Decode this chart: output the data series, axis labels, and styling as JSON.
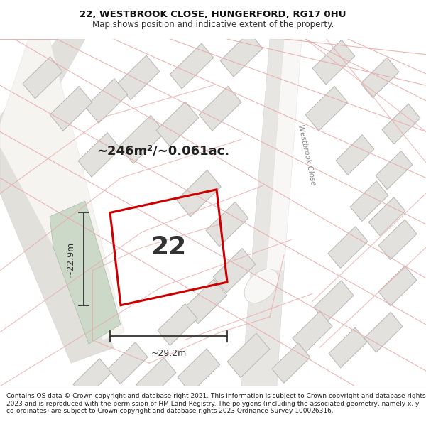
{
  "title_line1": "22, WESTBROOK CLOSE, HUNGERFORD, RG17 0HU",
  "title_line2": "Map shows position and indicative extent of the property.",
  "footer_text": "Contains OS data © Crown copyright and database right 2021. This information is subject to Crown copyright and database rights 2023 and is reproduced with the permission of HM Land Registry. The polygons (including the associated geometry, namely x, y co-ordinates) are subject to Crown copyright and database rights 2023 Ordnance Survey 100026316.",
  "area_text": "~246m²/~0.061ac.",
  "plot_number": "22",
  "dim_width": "~29.2m",
  "dim_height": "~22.9m",
  "road_label": "Westbrook Close",
  "map_bg": "#f2f0ed",
  "plot_edge_color": "#cc0000",
  "green_area_color": "#cdd9c8",
  "dim_color": "#333333",
  "title_fontsize": 9.5,
  "subtitle_fontsize": 8.5,
  "footer_fontsize": 6.5,
  "area_fontsize": 13,
  "number_fontsize": 26,
  "dim_fontsize": 9
}
